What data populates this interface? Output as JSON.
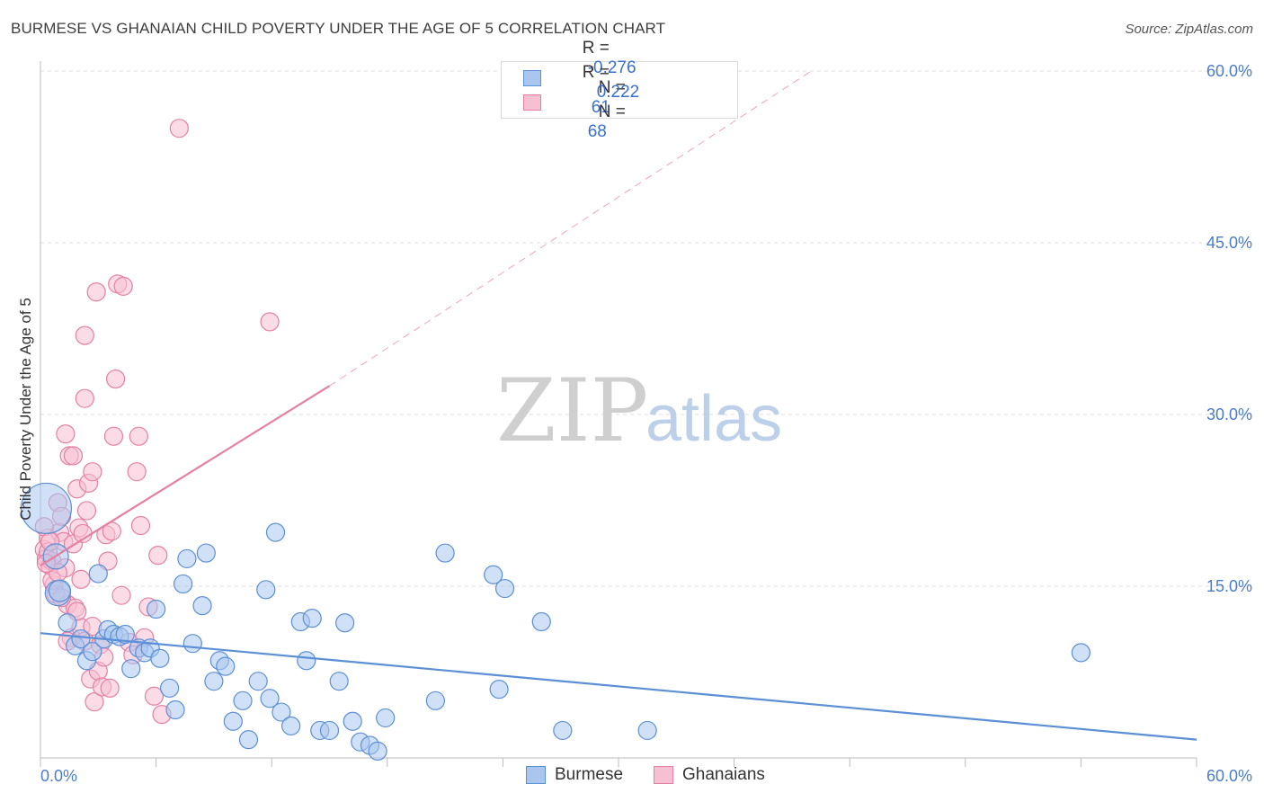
{
  "title": "BURMESE VS GHANAIAN CHILD POVERTY UNDER THE AGE OF 5 CORRELATION CHART",
  "source": "Source: ZipAtlas.com",
  "watermark": {
    "zip": "ZIP",
    "atlas": "atlas"
  },
  "legend": {
    "rows": [
      {
        "r_label": "R =",
        "r_value": "-0.276",
        "n_label": "N =",
        "n_value": "61",
        "color": "#a9c6ef",
        "stroke": "#5b8fd6"
      },
      {
        "r_label": "R =",
        "r_value": "0.222",
        "n_label": "N =",
        "n_value": "68",
        "color": "#f7bfd2",
        "stroke": "#e57fa3"
      }
    ]
  },
  "bottom_legend": [
    {
      "label": "Burmese",
      "color": "#a9c6ef",
      "stroke": "#5b8fd6"
    },
    {
      "label": "Ghanaians",
      "color": "#f7bfd2",
      "stroke": "#e57fa3"
    }
  ],
  "chart_data": {
    "type": "scatter",
    "xlabel": "",
    "ylabel": "Child Poverty Under the Age of 5",
    "xlim": [
      0,
      60
    ],
    "ylim": [
      0,
      60
    ],
    "x_tick_labels": [
      "0.0%",
      "60.0%"
    ],
    "y_tick_labels": [
      "15.0%",
      "30.0%",
      "45.0%",
      "60.0%"
    ],
    "y_tick_values": [
      15,
      30,
      45,
      60
    ],
    "grid": true,
    "series": [
      {
        "name": "Burmese",
        "color": "#5b8fd6",
        "fill": "#a9c6ef",
        "trend": {
          "x": [
            0,
            60
          ],
          "y": [
            10.9,
            1.6
          ],
          "style": "solid"
        },
        "points": [
          [
            0.3,
            21.8,
            28
          ],
          [
            0.8,
            17.6,
            14
          ],
          [
            0.9,
            14.4,
            14
          ],
          [
            1.0,
            14.6,
            12
          ],
          [
            1.4,
            11.8,
            10
          ],
          [
            1.8,
            9.8,
            10
          ],
          [
            2.1,
            10.4,
            10
          ],
          [
            2.4,
            8.5,
            10
          ],
          [
            2.7,
            9.3,
            10
          ],
          [
            3.0,
            16.1,
            10
          ],
          [
            3.3,
            10.4,
            10
          ],
          [
            3.5,
            11.2,
            10
          ],
          [
            3.8,
            10.8,
            10
          ],
          [
            4.1,
            10.6,
            10
          ],
          [
            4.4,
            10.8,
            10
          ],
          [
            4.7,
            7.8,
            10
          ],
          [
            5.1,
            9.6,
            10
          ],
          [
            5.4,
            9.2,
            10
          ],
          [
            5.7,
            9.6,
            10
          ],
          [
            6.0,
            13.0,
            10
          ],
          [
            6.2,
            8.7,
            10
          ],
          [
            6.7,
            6.1,
            10
          ],
          [
            7.0,
            4.2,
            10
          ],
          [
            7.4,
            15.2,
            10
          ],
          [
            7.6,
            17.4,
            10
          ],
          [
            7.9,
            10.0,
            10
          ],
          [
            8.4,
            13.3,
            10
          ],
          [
            8.6,
            17.9,
            10
          ],
          [
            9.0,
            6.7,
            10
          ],
          [
            9.3,
            8.5,
            10
          ],
          [
            9.6,
            8.0,
            10
          ],
          [
            10.0,
            3.2,
            10
          ],
          [
            10.5,
            5.0,
            10
          ],
          [
            10.8,
            1.6,
            10
          ],
          [
            11.3,
            6.7,
            10
          ],
          [
            11.7,
            14.7,
            10
          ],
          [
            11.9,
            5.2,
            10
          ],
          [
            12.2,
            19.7,
            10
          ],
          [
            12.5,
            4.0,
            10
          ],
          [
            13.0,
            2.8,
            10
          ],
          [
            13.5,
            11.9,
            10
          ],
          [
            13.8,
            8.5,
            10
          ],
          [
            14.1,
            12.2,
            10
          ],
          [
            14.5,
            2.4,
            10
          ],
          [
            15.0,
            2.4,
            10
          ],
          [
            15.5,
            6.7,
            10
          ],
          [
            15.8,
            11.8,
            10
          ],
          [
            16.2,
            3.2,
            10
          ],
          [
            16.6,
            1.4,
            10
          ],
          [
            17.1,
            1.1,
            10
          ],
          [
            17.5,
            0.6,
            10
          ],
          [
            17.9,
            3.5,
            10
          ],
          [
            20.5,
            5.0,
            10
          ],
          [
            21.0,
            17.9,
            10
          ],
          [
            23.5,
            16.0,
            10
          ],
          [
            23.8,
            6.0,
            10
          ],
          [
            24.1,
            14.8,
            10
          ],
          [
            26.0,
            11.9,
            10
          ],
          [
            27.1,
            2.4,
            10
          ],
          [
            31.5,
            2.4,
            10
          ],
          [
            54.0,
            9.2,
            10
          ]
        ]
      },
      {
        "name": "Ghanaians",
        "color": "#e57fa3",
        "fill": "#f7bfd2",
        "trend": {
          "x": [
            0,
            15
          ],
          "y": [
            16.8,
            32.5
          ],
          "style": "solid",
          "dashed_to": [
            40,
            60
          ]
        },
        "points": [
          [
            0.2,
            18.2,
            10
          ],
          [
            0.3,
            17.4,
            10
          ],
          [
            0.4,
            19.2,
            10
          ],
          [
            0.5,
            16.8,
            10
          ],
          [
            0.6,
            17.2,
            10
          ],
          [
            0.7,
            15.1,
            10
          ],
          [
            0.8,
            14.3,
            10
          ],
          [
            0.9,
            22.3,
            10
          ],
          [
            1.0,
            19.7,
            10
          ],
          [
            1.1,
            21.1,
            10
          ],
          [
            1.2,
            18.9,
            10
          ],
          [
            1.3,
            16.6,
            10
          ],
          [
            1.3,
            28.3,
            10
          ],
          [
            1.4,
            13.4,
            10
          ],
          [
            1.5,
            26.4,
            10
          ],
          [
            1.6,
            10.5,
            10
          ],
          [
            1.7,
            18.7,
            10
          ],
          [
            1.7,
            26.4,
            10
          ],
          [
            1.8,
            13.1,
            10
          ],
          [
            1.9,
            23.5,
            10
          ],
          [
            2.0,
            20.1,
            10
          ],
          [
            2.1,
            11.4,
            10
          ],
          [
            2.1,
            15.6,
            10
          ],
          [
            2.2,
            19.6,
            10
          ],
          [
            2.3,
            10.2,
            10
          ],
          [
            2.3,
            31.4,
            10
          ],
          [
            2.3,
            36.9,
            10
          ],
          [
            2.4,
            21.6,
            10
          ],
          [
            2.5,
            24.0,
            10
          ],
          [
            2.6,
            6.9,
            10
          ],
          [
            2.7,
            11.5,
            10
          ],
          [
            2.7,
            25.0,
            10
          ],
          [
            2.8,
            4.9,
            10
          ],
          [
            2.9,
            40.7,
            10
          ],
          [
            3.0,
            7.6,
            10
          ],
          [
            3.1,
            9.9,
            10
          ],
          [
            3.2,
            6.2,
            10
          ],
          [
            3.3,
            8.8,
            10
          ],
          [
            3.4,
            19.5,
            10
          ],
          [
            3.5,
            17.2,
            10
          ],
          [
            3.6,
            6.1,
            10
          ],
          [
            3.7,
            19.8,
            10
          ],
          [
            3.8,
            28.1,
            10
          ],
          [
            3.9,
            33.1,
            10
          ],
          [
            4.0,
            41.4,
            10
          ],
          [
            4.2,
            14.2,
            10
          ],
          [
            4.3,
            41.2,
            10
          ],
          [
            4.6,
            10.1,
            10
          ],
          [
            4.8,
            9.0,
            10
          ],
          [
            5.0,
            25.0,
            10
          ],
          [
            5.1,
            28.1,
            10
          ],
          [
            5.2,
            20.3,
            10
          ],
          [
            5.4,
            10.5,
            10
          ],
          [
            5.6,
            13.2,
            10
          ],
          [
            5.9,
            5.4,
            10
          ],
          [
            6.1,
            17.7,
            10
          ],
          [
            6.3,
            3.8,
            10
          ],
          [
            7.2,
            55.0,
            10
          ],
          [
            11.9,
            38.1,
            10
          ],
          [
            0.2,
            20.2,
            10
          ],
          [
            0.4,
            18.0,
            10
          ],
          [
            0.6,
            15.5,
            10
          ],
          [
            0.9,
            16.2,
            10
          ],
          [
            1.1,
            14.0,
            10
          ],
          [
            1.4,
            10.2,
            10
          ],
          [
            1.9,
            12.8,
            10
          ],
          [
            0.3,
            17.0,
            10
          ],
          [
            0.5,
            18.9,
            10
          ]
        ]
      }
    ]
  }
}
